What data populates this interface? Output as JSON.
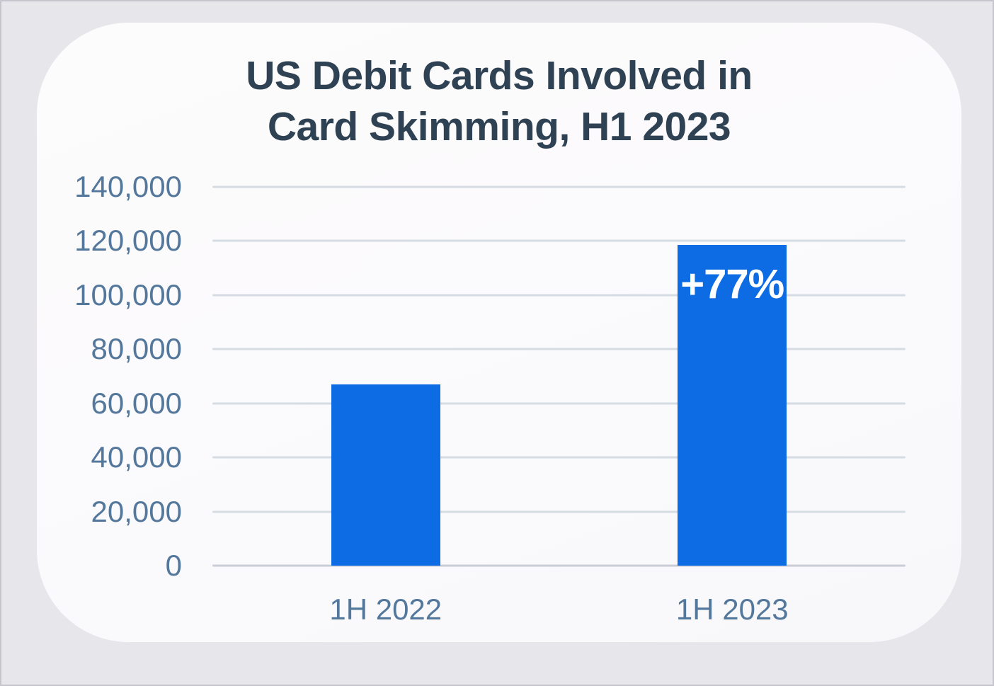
{
  "card": {
    "title_line1": "US Debit Cards Involved in",
    "title_line2": "Card Skimming, H1 2023"
  },
  "chart_data": {
    "type": "bar",
    "title": "US Debit Cards Involved in Card Skimming, H1 2023",
    "categories": [
      "1H 2022",
      "1H 2023"
    ],
    "values": [
      67000,
      118600
    ],
    "annotations": [
      {
        "category_index": 1,
        "label": "+77%"
      }
    ],
    "xlabel": "",
    "ylabel": "",
    "ylim": [
      0,
      140000
    ],
    "yticks": [
      0,
      20000,
      40000,
      60000,
      80000,
      100000,
      120000,
      140000
    ],
    "ytick_labels": [
      "0",
      "20,000",
      "40,000",
      "60,000",
      "80,000",
      "100,000",
      "120,000",
      "140,000"
    ],
    "grid": true,
    "legend": false,
    "colors": {
      "bar": "#0d6ce4",
      "tick_label": "#54779c",
      "title": "#2f4254",
      "gridline": "#d6dce3",
      "zero_line": "#c9ced6",
      "annotation_text": "#ffffff",
      "card_background": "#fbfafc",
      "page_background": "#e7e6eb"
    }
  }
}
